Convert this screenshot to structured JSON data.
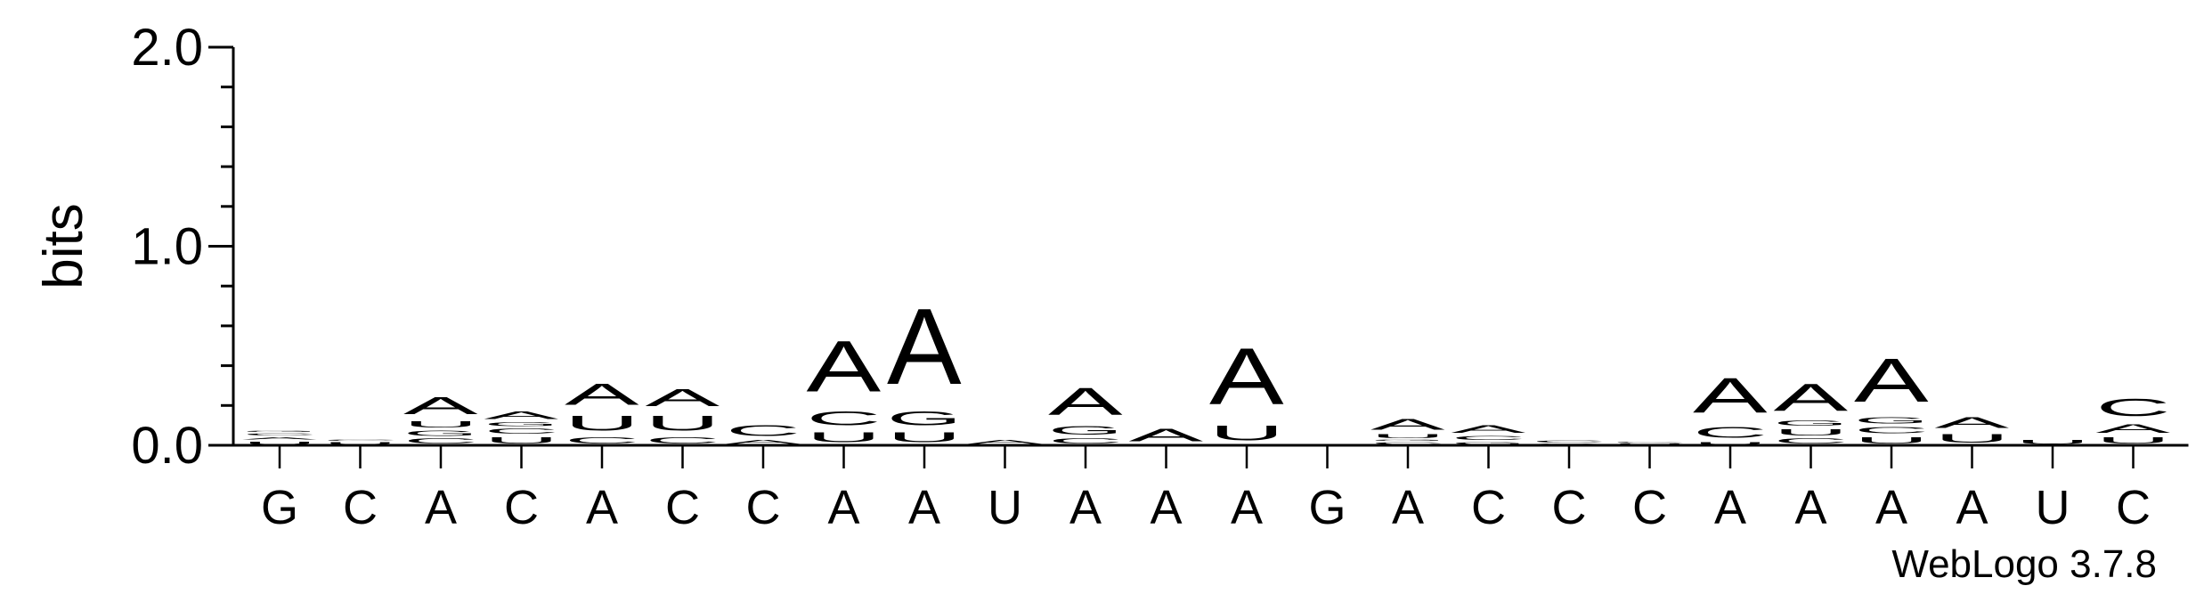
{
  "chart_data": {
    "type": "sequence-logo",
    "ylabel": "bits",
    "ylim": [
      0,
      2.0
    ],
    "yticks": [
      {
        "value": 0.0,
        "label": "0.0"
      },
      {
        "value": 1.0,
        "label": "1.0"
      },
      {
        "value": 2.0,
        "label": "2.0"
      }
    ],
    "x_labels": [
      "G",
      "C",
      "A",
      "C",
      "A",
      "C",
      "C",
      "A",
      "A",
      "U",
      "A",
      "A",
      "A",
      "G",
      "A",
      "C",
      "C",
      "C",
      "A",
      "A",
      "A",
      "A",
      "U",
      "C"
    ],
    "colors": {
      "A": "#f7941d",
      "U": "#f7941d",
      "C": "#0000ff",
      "G": "#0000ff"
    },
    "positions": [
      {
        "letters": [
          [
            "U",
            0.025
          ],
          [
            "A",
            0.02
          ],
          [
            "C",
            0.02
          ],
          [
            "G",
            0.01
          ]
        ]
      },
      {
        "letters": [
          [
            "U",
            0.02
          ],
          [
            "C",
            0.01
          ]
        ]
      },
      {
        "letters": [
          [
            "C",
            0.04
          ],
          [
            "G",
            0.04
          ],
          [
            "U",
            0.05
          ],
          [
            "A",
            0.14
          ]
        ]
      },
      {
        "letters": [
          [
            "U",
            0.05
          ],
          [
            "C",
            0.04
          ],
          [
            "G",
            0.03
          ],
          [
            "A",
            0.06
          ]
        ]
      },
      {
        "letters": [
          [
            "C",
            0.05
          ],
          [
            "U",
            0.12
          ],
          [
            "A",
            0.17
          ]
        ]
      },
      {
        "letters": [
          [
            "C",
            0.05
          ],
          [
            "U",
            0.12
          ],
          [
            "A",
            0.14
          ]
        ]
      },
      {
        "letters": [
          [
            "A",
            0.03
          ],
          [
            "C",
            0.09
          ]
        ]
      },
      {
        "letters": [
          [
            "U",
            0.08
          ],
          [
            "C",
            0.11
          ],
          [
            "A",
            0.41
          ]
        ]
      },
      {
        "letters": [
          [
            "U",
            0.08
          ],
          [
            "G",
            0.11
          ],
          [
            "A",
            0.61
          ]
        ]
      },
      {
        "letters": [
          [
            "A",
            0.03
          ]
        ]
      },
      {
        "letters": [
          [
            "C",
            0.04
          ],
          [
            "G",
            0.07
          ],
          [
            "A",
            0.22
          ]
        ]
      },
      {
        "letters": [
          [
            "A",
            0.1
          ]
        ]
      },
      {
        "letters": [
          [
            "U",
            0.12
          ],
          [
            "A",
            0.45
          ]
        ]
      },
      {
        "letters": []
      },
      {
        "letters": [
          [
            "C",
            0.02
          ],
          [
            "G",
            0.01
          ],
          [
            "U",
            0.03
          ],
          [
            "A",
            0.09
          ]
        ]
      },
      {
        "letters": [
          [
            "G",
            0.02
          ],
          [
            "C",
            0.03
          ],
          [
            "A",
            0.06
          ]
        ]
      },
      {
        "letters": [
          [
            "G",
            0.01
          ],
          [
            "C",
            0.02
          ]
        ]
      },
      {
        "letters": [
          [
            "U",
            0.01
          ],
          [
            "C",
            0.01
          ]
        ]
      },
      {
        "letters": [
          [
            "U",
            0.02
          ],
          [
            "C",
            0.09
          ],
          [
            "A",
            0.28
          ]
        ]
      },
      {
        "letters": [
          [
            "C",
            0.04
          ],
          [
            "U",
            0.05
          ],
          [
            "G",
            0.04
          ],
          [
            "A",
            0.22
          ]
        ]
      },
      {
        "letters": [
          [
            "U",
            0.05
          ],
          [
            "C",
            0.05
          ],
          [
            "G",
            0.05
          ],
          [
            "A",
            0.35
          ]
        ]
      },
      {
        "letters": [
          [
            "U",
            0.07
          ],
          [
            "A",
            0.09
          ]
        ]
      },
      {
        "letters": [
          [
            "U",
            0.03
          ]
        ]
      },
      {
        "letters": [
          [
            "U",
            0.05
          ],
          [
            "A",
            0.07
          ],
          [
            "C",
            0.14
          ]
        ]
      }
    ]
  },
  "footer": {
    "credit": "WebLogo 3.7.8"
  }
}
